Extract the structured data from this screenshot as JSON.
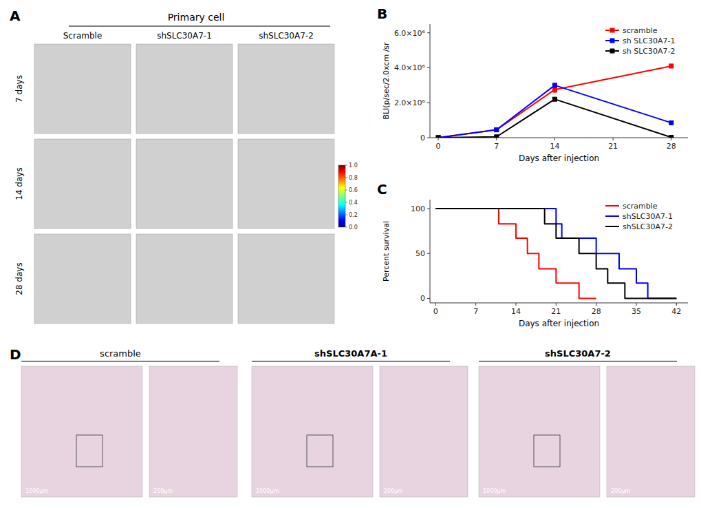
{
  "chart_data": [
    {
      "type": "image_grid",
      "title": "A",
      "subtitle": "Primary cell",
      "categories": [
        "Scramble",
        "shSLC30A7-1",
        "shSLC30A7-2"
      ],
      "rows": [
        "7 days",
        "14 days",
        "28 days"
      ],
      "colorbar_range": [
        0,
        1
      ],
      "colorbar_ticks": [
        {
          "value": 0,
          "label": "0.0"
        },
        0.2,
        0.4,
        0.6,
        0.8,
        {
          "value": 1,
          "label": "1.0"
        }
      ]
    },
    {
      "type": "line",
      "title": "B",
      "xlabel": "Days after injection",
      "ylabel": "BLI(p/sec/2.0xcm /sr",
      "x": [
        0,
        7,
        14,
        28
      ],
      "xlim": [
        -1,
        30
      ],
      "ylim": [
        0,
        6500000
      ],
      "xticks": [
        0,
        7,
        14,
        21,
        28
      ],
      "yticks": [
        0,
        {
          "value": 2000000,
          "label": "2.0×10⁶"
        },
        {
          "value": 4000000,
          "label": "4.0×10⁶"
        },
        {
          "value": 6000000,
          "label": "6.0×10⁶"
        }
      ],
      "marker": "square",
      "legend": "upper right",
      "series": [
        {
          "name": "scramble",
          "color": "#ff0000",
          "values": [
            0,
            450000,
            2750000,
            4100000
          ],
          "errors": [
            0,
            50000,
            150000,
            100000
          ]
        },
        {
          "name": "sh SLC30A7-1",
          "color": "#0000ff",
          "values": [
            0,
            450000,
            3000000,
            850000
          ],
          "errors": [
            0,
            50000,
            100000,
            50000
          ]
        },
        {
          "name": "sh SLC30A7-2",
          "color": "#000000",
          "values": [
            0,
            50000,
            2200000,
            20000
          ],
          "errors": [
            0,
            20000,
            100000,
            10000
          ]
        }
      ]
    },
    {
      "type": "step",
      "title": "C",
      "xlabel": "Days after injection",
      "ylabel": "Percent survival",
      "xlim": [
        -1,
        44
      ],
      "ylim": [
        -5,
        110
      ],
      "xticks": [
        0,
        7,
        14,
        21,
        28,
        35,
        42
      ],
      "yticks": [
        0,
        50,
        100
      ],
      "legend": "upper right",
      "series": [
        {
          "name": "scramble",
          "color": "#ff0000",
          "x": [
            0,
            11,
            11,
            14,
            14,
            16,
            16,
            18,
            18,
            21,
            21,
            25,
            25,
            28
          ],
          "values": [
            100,
            100,
            83,
            83,
            67,
            67,
            50,
            50,
            33,
            33,
            17,
            17,
            0,
            0
          ]
        },
        {
          "name": "shSLC30A7-1",
          "color": "#0000ff",
          "x": [
            0,
            21,
            21,
            22,
            22,
            28,
            28,
            32,
            32,
            35,
            35,
            37,
            37,
            42
          ],
          "values": [
            100,
            100,
            83,
            83,
            67,
            67,
            50,
            50,
            33,
            33,
            17,
            17,
            0,
            0
          ]
        },
        {
          "name": "shSLC30A7-2",
          "color": "#000000",
          "x": [
            0,
            19,
            19,
            21,
            21,
            25,
            25,
            28,
            28,
            30,
            30,
            33,
            33,
            42
          ],
          "values": [
            100,
            100,
            83,
            83,
            67,
            67,
            50,
            50,
            33,
            33,
            17,
            17,
            0,
            0
          ]
        }
      ]
    },
    {
      "type": "image_pairs",
      "title": "D",
      "categories": [
        "scramble",
        "shSLC30A7A-1",
        "shSLC30A7-2"
      ],
      "annotations": [
        "1000μm",
        "200μm"
      ]
    }
  ]
}
